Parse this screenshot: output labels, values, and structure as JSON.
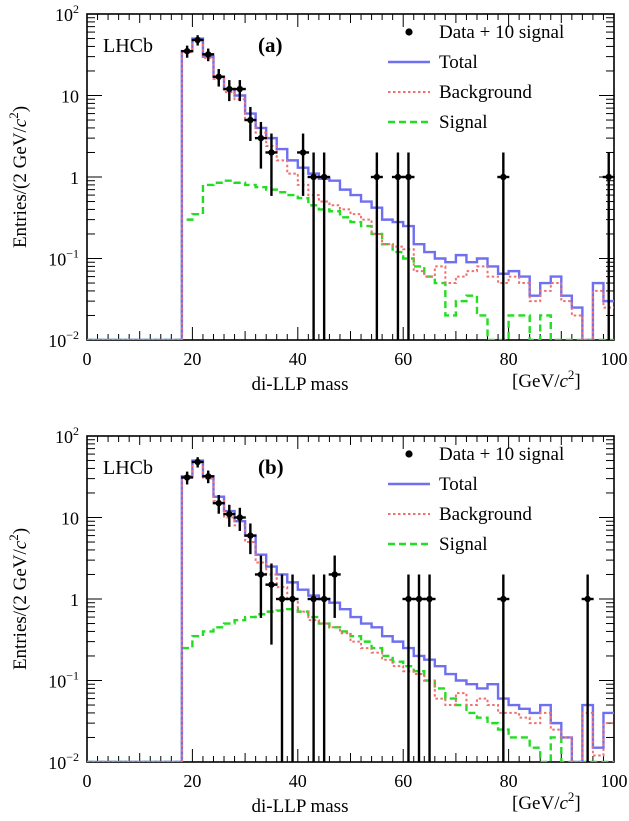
{
  "chart_data": [
    {
      "type": "line",
      "panel_label": "(a)",
      "experiment_label": "LHCb",
      "xlabel": "di-LLP mass",
      "xunit": "[GeV/c2]",
      "ylabel": "Entries/(2 GeV/c2)",
      "xlim": [
        0,
        100
      ],
      "ylim": [
        0.01,
        100
      ],
      "yscale": "log",
      "x_ticks": [
        "0",
        "20",
        "40",
        "60",
        "80",
        "100"
      ],
      "y_ticks": [
        {
          "base": "10",
          "exp": "−2"
        },
        {
          "base": "10",
          "exp": "−1"
        },
        {
          "base": "1",
          "exp": ""
        },
        {
          "base": "10",
          "exp": ""
        },
        {
          "base": "10",
          "exp": "2"
        }
      ],
      "legend": {
        "position": "top-right",
        "entries": [
          {
            "label": "Data + 10 signal",
            "style": "marker",
            "color": "#000000"
          },
          {
            "label": "Total",
            "style": "solid",
            "color": "#6f6ff0"
          },
          {
            "label": "Background",
            "style": "dotted",
            "color": "#f07070"
          },
          {
            "label": "Signal",
            "style": "dashed",
            "color": "#22dd22"
          }
        ]
      },
      "bin_edges": [
        0,
        2,
        4,
        6,
        8,
        10,
        12,
        14,
        16,
        18,
        20,
        22,
        24,
        26,
        28,
        30,
        32,
        34,
        36,
        38,
        40,
        42,
        44,
        46,
        48,
        50,
        52,
        54,
        56,
        58,
        60,
        62,
        64,
        66,
        68,
        70,
        72,
        74,
        76,
        78,
        80,
        82,
        84,
        86,
        88,
        90,
        92,
        94,
        96,
        98,
        100
      ],
      "series": [
        {
          "name": "Total",
          "values": [
            0.01,
            0.01,
            0.01,
            0.01,
            0.01,
            0.01,
            0.01,
            0.01,
            0.01,
            35,
            50,
            30,
            17,
            12,
            10,
            6,
            4,
            3,
            2.2,
            1.6,
            1.3,
            1.1,
            0.95,
            0.9,
            0.7,
            0.6,
            0.5,
            0.42,
            0.3,
            0.28,
            0.25,
            0.15,
            0.12,
            0.1,
            0.09,
            0.11,
            0.09,
            0.1,
            0.08,
            0.065,
            0.07,
            0.06,
            0.035,
            0.05,
            0.06,
            0.035,
            0.025,
            0.01,
            0.05,
            0.03
          ]
        },
        {
          "name": "Background",
          "values": [
            0.01,
            0.01,
            0.01,
            0.01,
            0.01,
            0.01,
            0.01,
            0.01,
            0.01,
            34,
            48,
            29,
            16,
            11,
            9,
            5,
            3.5,
            2.4,
            1.6,
            1.1,
            0.8,
            0.6,
            0.5,
            0.45,
            0.4,
            0.35,
            0.3,
            0.2,
            0.15,
            0.14,
            0.13,
            0.07,
            0.06,
            0.08,
            0.05,
            0.06,
            0.07,
            0.08,
            0.06,
            0.05,
            0.06,
            0.05,
            0.03,
            0.04,
            0.05,
            0.03,
            0.02,
            0.01,
            0.04,
            0.025
          ]
        },
        {
          "name": "Signal",
          "values": [
            0.01,
            0.01,
            0.01,
            0.01,
            0.01,
            0.01,
            0.01,
            0.01,
            0.01,
            0.3,
            0.35,
            0.8,
            0.85,
            0.9,
            0.85,
            0.8,
            0.75,
            0.7,
            0.65,
            0.6,
            0.55,
            0.45,
            0.4,
            0.38,
            0.32,
            0.28,
            0.25,
            0.2,
            0.15,
            0.12,
            0.1,
            0.08,
            0.06,
            0.05,
            0.02,
            0.03,
            0.035,
            0.02,
            0.01,
            0.01,
            0.02,
            0.02,
            0.01,
            0.02,
            0.01,
            0.01,
            0.01,
            0.01,
            0.01,
            0.01
          ]
        },
        {
          "name": "Data + 10 signal",
          "points": [
            {
              "x": 19,
              "y": 35
            },
            {
              "x": 21,
              "y": 48
            },
            {
              "x": 23,
              "y": 32
            },
            {
              "x": 25,
              "y": 17
            },
            {
              "x": 27,
              "y": 12
            },
            {
              "x": 29,
              "y": 12
            },
            {
              "x": 31,
              "y": 5
            },
            {
              "x": 33,
              "y": 3
            },
            {
              "x": 35,
              "y": 2
            },
            {
              "x": 41,
              "y": 2
            },
            {
              "x": 43,
              "y": 1
            },
            {
              "x": 45,
              "y": 1
            },
            {
              "x": 55,
              "y": 1
            },
            {
              "x": 59,
              "y": 1
            },
            {
              "x": 61,
              "y": 1
            },
            {
              "x": 79,
              "y": 1
            },
            {
              "x": 99,
              "y": 1
            }
          ]
        }
      ]
    },
    {
      "type": "line",
      "panel_label": "(b)",
      "experiment_label": "LHCb",
      "xlabel": "di-LLP mass",
      "xunit": "[GeV/c2]",
      "ylabel": "Entries/(2 GeV/c2)",
      "xlim": [
        0,
        100
      ],
      "ylim": [
        0.01,
        100
      ],
      "yscale": "log",
      "x_ticks": [
        "0",
        "20",
        "40",
        "60",
        "80",
        "100"
      ],
      "y_ticks": [
        {
          "base": "10",
          "exp": "−2"
        },
        {
          "base": "10",
          "exp": "−1"
        },
        {
          "base": "1",
          "exp": ""
        },
        {
          "base": "10",
          "exp": ""
        },
        {
          "base": "10",
          "exp": "2"
        }
      ],
      "legend": {
        "position": "top-right",
        "entries": [
          {
            "label": "Data + 10 signal",
            "style": "marker",
            "color": "#000000"
          },
          {
            "label": "Total",
            "style": "solid",
            "color": "#6f6ff0"
          },
          {
            "label": "Background",
            "style": "dotted",
            "color": "#f07070"
          },
          {
            "label": "Signal",
            "style": "dashed",
            "color": "#22dd22"
          }
        ]
      },
      "bin_edges": [
        0,
        2,
        4,
        6,
        8,
        10,
        12,
        14,
        16,
        18,
        20,
        22,
        24,
        26,
        28,
        30,
        32,
        34,
        36,
        38,
        40,
        42,
        44,
        46,
        48,
        50,
        52,
        54,
        56,
        58,
        60,
        62,
        64,
        66,
        68,
        70,
        72,
        74,
        76,
        78,
        80,
        82,
        84,
        86,
        88,
        90,
        92,
        94,
        96,
        98,
        100
      ],
      "series": [
        {
          "name": "Total",
          "values": [
            0.01,
            0.01,
            0.01,
            0.01,
            0.01,
            0.01,
            0.01,
            0.01,
            0.01,
            32,
            50,
            32,
            18,
            12,
            9,
            6,
            3.5,
            2.5,
            2,
            1.6,
            1.3,
            1.1,
            1,
            0.9,
            0.75,
            0.6,
            0.5,
            0.45,
            0.35,
            0.3,
            0.25,
            0.2,
            0.18,
            0.15,
            0.12,
            0.1,
            0.09,
            0.08,
            0.09,
            0.06,
            0.05,
            0.045,
            0.04,
            0.05,
            0.03,
            0.02,
            0.01,
            0.05,
            0.015,
            0.04
          ]
        },
        {
          "name": "Background",
          "values": [
            0.01,
            0.01,
            0.01,
            0.01,
            0.01,
            0.01,
            0.01,
            0.01,
            0.01,
            31,
            48,
            30,
            16,
            10,
            8,
            5,
            2.8,
            2,
            1.4,
            1,
            0.7,
            0.55,
            0.5,
            0.45,
            0.38,
            0.3,
            0.25,
            0.22,
            0.18,
            0.15,
            0.13,
            0.12,
            0.1,
            0.06,
            0.05,
            0.07,
            0.05,
            0.06,
            0.05,
            0.04,
            0.04,
            0.035,
            0.03,
            0.04,
            0.025,
            0.02,
            0.01,
            0.04,
            0.012,
            0.03
          ]
        },
        {
          "name": "Signal",
          "values": [
            0.01,
            0.01,
            0.01,
            0.01,
            0.01,
            0.01,
            0.01,
            0.01,
            0.01,
            0.25,
            0.35,
            0.4,
            0.45,
            0.5,
            0.55,
            0.6,
            0.65,
            0.7,
            0.72,
            0.75,
            0.7,
            0.6,
            0.5,
            0.45,
            0.4,
            0.35,
            0.3,
            0.25,
            0.2,
            0.17,
            0.15,
            0.13,
            0.1,
            0.08,
            0.06,
            0.05,
            0.04,
            0.035,
            0.03,
            0.025,
            0.02,
            0.02,
            0.015,
            0.01,
            0.02,
            0.01,
            0.01,
            0.01,
            0.01,
            0.01
          ]
        },
        {
          "name": "Data + 10 signal",
          "points": [
            {
              "x": 19,
              "y": 31
            },
            {
              "x": 21,
              "y": 48
            },
            {
              "x": 23,
              "y": 32
            },
            {
              "x": 25,
              "y": 15
            },
            {
              "x": 27,
              "y": 11
            },
            {
              "x": 29,
              "y": 10
            },
            {
              "x": 31,
              "y": 6
            },
            {
              "x": 33,
              "y": 2
            },
            {
              "x": 35,
              "y": 1.5
            },
            {
              "x": 37,
              "y": 1
            },
            {
              "x": 39,
              "y": 1
            },
            {
              "x": 43,
              "y": 1
            },
            {
              "x": 45,
              "y": 1
            },
            {
              "x": 47,
              "y": 2
            },
            {
              "x": 61,
              "y": 1
            },
            {
              "x": 63,
              "y": 1
            },
            {
              "x": 65,
              "y": 1
            },
            {
              "x": 79,
              "y": 1
            },
            {
              "x": 95,
              "y": 1
            }
          ]
        }
      ]
    }
  ]
}
